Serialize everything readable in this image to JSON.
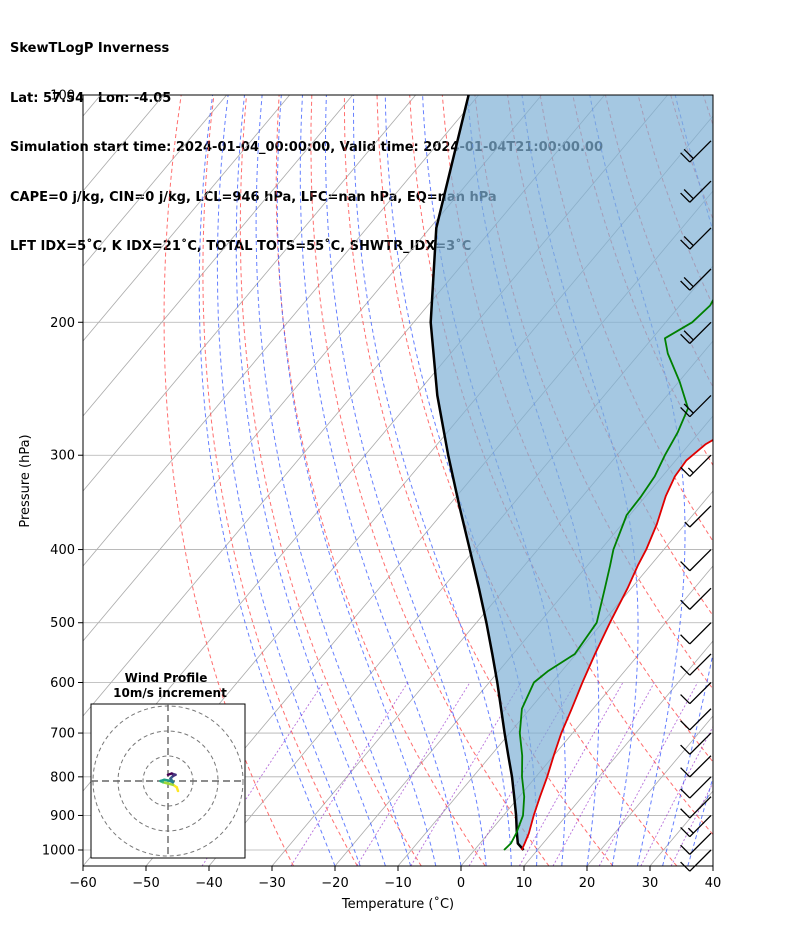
{
  "header": {
    "line1": "SkewTLogP Inverness",
    "line2": "Lat: 57.54   Lon: -4.05",
    "line3": "Simulation start time: 2024-01-04_00:00:00, Valid time: 2024-01-04T21:00:00.00",
    "line4": "CAPE=0 j/kg, CIN=0 j/kg, LCL=946 hPa, LFC=nan hPa, EQ=nan hPa",
    "line5": "LFT IDX=5˚C, K IDX=21˚C, TOTAL TOTS=55˚C, SHWTR_IDX=3˚C"
  },
  "colors": {
    "temperature": "#e00000",
    "dewpoint": "#008000",
    "parcel": "#000000",
    "cape_fill": "#7fb0d6",
    "dry_adiabat": "#ff5555",
    "moist_adiabat": "#3355ff",
    "mixing_ratio": "#9933cc",
    "isotherm": "#aaaaaa"
  },
  "chart_data": {
    "type": "line",
    "xlabel": "Temperature (˚C)",
    "ylabel": "Pressure (hPa)",
    "xlim": [
      -60,
      40
    ],
    "ylim": [
      1050,
      100
    ],
    "x_ticks": [
      "−60",
      "−50",
      "−40",
      "−30",
      "−20",
      "−10",
      "0",
      "10",
      "20",
      "30",
      "40"
    ],
    "x_tick_values": [
      -60,
      -50,
      -40,
      -30,
      -20,
      -10,
      0,
      10,
      20,
      30,
      40
    ],
    "y_ticks": [
      "100",
      "200",
      "300",
      "400",
      "500",
      "600",
      "700",
      "800",
      "900",
      "1000"
    ],
    "y_tick_values": [
      100,
      200,
      300,
      400,
      500,
      600,
      700,
      800,
      900,
      1000
    ],
    "y_scale": "log",
    "grid": true,
    "series": [
      {
        "role": "temperature",
        "points": [
          [
            1000,
            7.5
          ],
          [
            980,
            7.1
          ],
          [
            950,
            6.4
          ],
          [
            900,
            4.8
          ],
          [
            850,
            3.3
          ],
          [
            800,
            1.8
          ],
          [
            750,
            0.0
          ],
          [
            700,
            -1.8
          ],
          [
            650,
            -3.4
          ],
          [
            600,
            -5.2
          ],
          [
            550,
            -7.0
          ],
          [
            500,
            -8.8
          ],
          [
            450,
            -10.6
          ],
          [
            420,
            -12.0
          ],
          [
            400,
            -12.8
          ],
          [
            370,
            -14.5
          ],
          [
            340,
            -16.8
          ],
          [
            320,
            -18.0
          ],
          [
            305,
            -18.3
          ],
          [
            290,
            -17.4
          ],
          [
            270,
            -14.1
          ],
          [
            250,
            -11.5
          ],
          [
            230,
            -8.9
          ],
          [
            210,
            -6.7
          ],
          [
            195,
            -5.0
          ],
          [
            180,
            -3.6
          ],
          [
            165,
            -3.6
          ],
          [
            150,
            -3.5
          ],
          [
            140,
            -2.8
          ],
          [
            130,
            -1.7
          ],
          [
            120,
            -0.8
          ],
          [
            110,
            0.2
          ],
          [
            105,
            0.5
          ],
          [
            100,
            0.7
          ]
        ]
      },
      {
        "role": "dewpoint",
        "points": [
          [
            1000,
            4.7
          ],
          [
            980,
            4.9
          ],
          [
            950,
            4.4
          ],
          [
            900,
            3.1
          ],
          [
            850,
            0.8
          ],
          [
            800,
            -2.2
          ],
          [
            750,
            -5.0
          ],
          [
            700,
            -8.4
          ],
          [
            650,
            -11.3
          ],
          [
            600,
            -12.9
          ],
          [
            580,
            -12.2
          ],
          [
            550,
            -10.2
          ],
          [
            500,
            -10.9
          ],
          [
            450,
            -14.2
          ],
          [
            420,
            -16.4
          ],
          [
            400,
            -18.0
          ],
          [
            360,
            -20.5
          ],
          [
            340,
            -20.7
          ],
          [
            320,
            -21.2
          ],
          [
            300,
            -22.4
          ],
          [
            280,
            -23.4
          ],
          [
            260,
            -25.0
          ],
          [
            240,
            -29.8
          ],
          [
            220,
            -35.5
          ],
          [
            210,
            -38.0
          ],
          [
            200,
            -35.8
          ],
          [
            190,
            -35.2
          ],
          [
            180,
            -36.0
          ],
          [
            165,
            -35.5
          ],
          [
            150,
            -34.6
          ],
          [
            140,
            -33.8
          ],
          [
            130,
            -32.6
          ],
          [
            120,
            -31.6
          ],
          [
            110,
            -30.5
          ],
          [
            100,
            -29.1
          ]
        ]
      },
      {
        "role": "parcel",
        "points": [
          [
            1000,
            7.8
          ],
          [
            980,
            6.0
          ],
          [
            946,
            4.3
          ],
          [
            900,
            2.0
          ],
          [
            850,
            -0.8
          ],
          [
            800,
            -3.8
          ],
          [
            750,
            -7.2
          ],
          [
            700,
            -10.8
          ],
          [
            650,
            -14.6
          ],
          [
            600,
            -18.7
          ],
          [
            550,
            -23.3
          ],
          [
            500,
            -28.4
          ],
          [
            450,
            -34.2
          ],
          [
            400,
            -40.8
          ],
          [
            350,
            -48.3
          ],
          [
            300,
            -56.8
          ],
          [
            250,
            -66.5
          ],
          [
            200,
            -77.3
          ],
          [
            150,
            -89.0
          ],
          [
            100,
            -101.6
          ]
        ]
      }
    ],
    "wind_barbs": [
      {
        "p": 1000,
        "speed_kt": 10
      },
      {
        "p": 950,
        "speed_kt": 10
      },
      {
        "p": 900,
        "speed_kt": 15
      },
      {
        "p": 850,
        "speed_kt": 10
      },
      {
        "p": 800,
        "speed_kt": 10
      },
      {
        "p": 750,
        "speed_kt": 10
      },
      {
        "p": 700,
        "speed_kt": 10
      },
      {
        "p": 650,
        "speed_kt": 10
      },
      {
        "p": 600,
        "speed_kt": 10
      },
      {
        "p": 550,
        "speed_kt": 10
      },
      {
        "p": 500,
        "speed_kt": 10
      },
      {
        "p": 450,
        "speed_kt": 10
      },
      {
        "p": 400,
        "speed_kt": 10
      },
      {
        "p": 350,
        "speed_kt": 5
      },
      {
        "p": 300,
        "speed_kt": 15
      },
      {
        "p": 250,
        "speed_kt": 20
      },
      {
        "p": 200,
        "speed_kt": 20
      },
      {
        "p": 170,
        "speed_kt": 20
      },
      {
        "p": 150,
        "speed_kt": 20
      },
      {
        "p": 130,
        "speed_kt": 20
      },
      {
        "p": 115,
        "speed_kt": 20
      }
    ],
    "hodograph": {
      "title_line1": "Wind Profile",
      "title_line2": "10m/s increment",
      "rings": 3,
      "points": [
        [
          4,
          -4
        ],
        [
          3.5,
          -2.5
        ],
        [
          2,
          -1.5
        ],
        [
          0,
          -1
        ],
        [
          -2,
          -0.5
        ],
        [
          -3,
          0
        ],
        [
          -1.5,
          0.5
        ],
        [
          1,
          0
        ],
        [
          2,
          -0.5
        ],
        [
          1,
          1
        ],
        [
          2,
          2
        ],
        [
          3,
          2.5
        ],
        [
          1.5,
          3
        ],
        [
          0,
          2.5
        ]
      ]
    }
  }
}
